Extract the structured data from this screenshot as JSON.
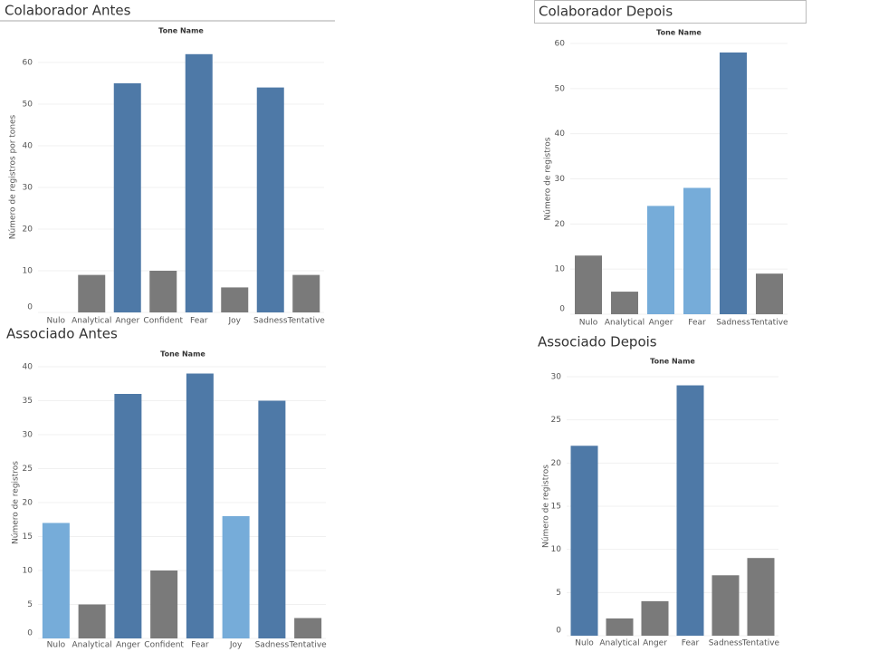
{
  "chart_data": [
    {
      "type": "bar",
      "title": "Colaborador Antes",
      "subtitle": "Tone Name",
      "ylabel": "Número de registros por tones",
      "categories": [
        "Nulo",
        "Analytical",
        "Anger",
        "Confident",
        "Fear",
        "Joy",
        "Sadness",
        "Tentative"
      ],
      "values": [
        0,
        9,
        55,
        10,
        62,
        6,
        54,
        9
      ],
      "colors": [
        "#7a7a7a",
        "#7a7a7a",
        "#4e79a7",
        "#7a7a7a",
        "#4e79a7",
        "#7a7a7a",
        "#4e79a7",
        "#7a7a7a"
      ],
      "ylim": [
        0,
        65
      ],
      "yticks": [
        0,
        10,
        20,
        30,
        40,
        50,
        60
      ],
      "grid": true
    },
    {
      "type": "bar",
      "title": "Colaborador Depois",
      "subtitle": "Tone Name",
      "ylabel": "Número de registros",
      "categories": [
        "Nulo",
        "Analytical",
        "Anger",
        "Fear",
        "Sadness",
        "Tentative"
      ],
      "values": [
        13,
        5,
        24,
        28,
        58,
        9
      ],
      "colors": [
        "#7a7a7a",
        "#7a7a7a",
        "#76acd9",
        "#76acd9",
        "#4e79a7",
        "#7a7a7a"
      ],
      "ylim": [
        0,
        60
      ],
      "yticks": [
        0,
        10,
        20,
        30,
        40,
        50,
        60
      ],
      "grid": true
    },
    {
      "type": "bar",
      "title": "Associado Antes",
      "subtitle": "Tone Name",
      "ylabel": "Número de registros",
      "categories": [
        "Nulo",
        "Analytical",
        "Anger",
        "Confident",
        "Fear",
        "Joy",
        "Sadness",
        "Tentative"
      ],
      "values": [
        17,
        5,
        36,
        10,
        39,
        18,
        35,
        3
      ],
      "colors": [
        "#76acd9",
        "#7a7a7a",
        "#4e79a7",
        "#7a7a7a",
        "#4e79a7",
        "#76acd9",
        "#4e79a7",
        "#7a7a7a"
      ],
      "ylim": [
        0,
        40
      ],
      "yticks": [
        0,
        5,
        10,
        15,
        20,
        25,
        30,
        35,
        40
      ],
      "grid": true
    },
    {
      "type": "bar",
      "title": "Associado Depois",
      "subtitle": "Tone Name",
      "ylabel": "Número de registros",
      "categories": [
        "Nulo",
        "Analytical",
        "Anger",
        "Fear",
        "Sadness",
        "Tentative"
      ],
      "values": [
        22,
        2,
        4,
        29,
        7,
        9
      ],
      "colors": [
        "#4e79a7",
        "#7a7a7a",
        "#7a7a7a",
        "#4e79a7",
        "#7a7a7a",
        "#7a7a7a"
      ],
      "ylim": [
        0,
        30
      ],
      "yticks": [
        0,
        5,
        10,
        15,
        20,
        25,
        30
      ],
      "grid": true
    }
  ]
}
